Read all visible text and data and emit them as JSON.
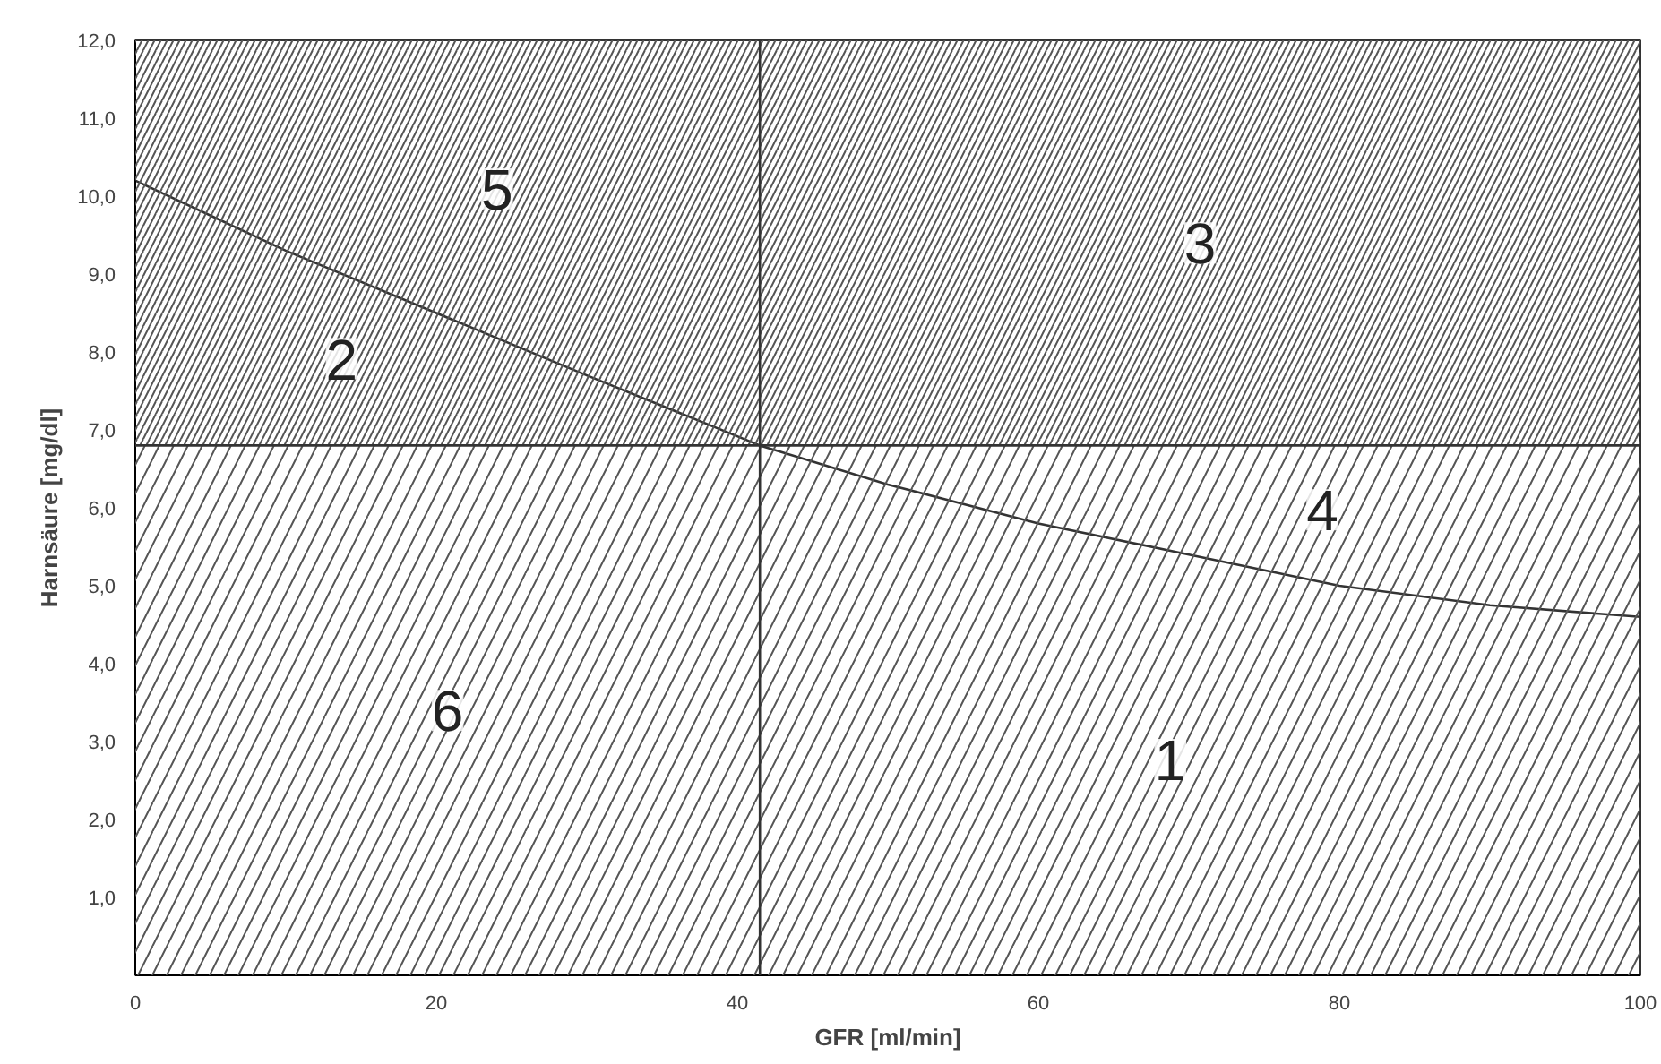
{
  "chart_data": {
    "type": "line",
    "xlabel": "GFR [ml/min]",
    "ylabel": "Harnsäure [mg/dl]",
    "xlim": [
      0,
      100
    ],
    "ylim": [
      0,
      12
    ],
    "xticks": [
      0,
      20,
      40,
      60,
      80,
      100
    ],
    "yticks": [
      {
        "value": 1,
        "label": "1,0"
      },
      {
        "value": 2,
        "label": "2,0"
      },
      {
        "value": 3,
        "label": "3,0"
      },
      {
        "value": 4,
        "label": "4,0"
      },
      {
        "value": 5,
        "label": "5,0"
      },
      {
        "value": 6,
        "label": "6,0"
      },
      {
        "value": 7,
        "label": "7,0"
      },
      {
        "value": 8,
        "label": "8,0"
      },
      {
        "value": 9,
        "label": "9,0"
      },
      {
        "value": 10,
        "label": "10,0"
      },
      {
        "value": 11,
        "label": "11,0"
      },
      {
        "value": 12,
        "label": "12,0"
      }
    ],
    "series": [
      {
        "color": "#333333",
        "x": [
          0,
          10,
          20,
          30,
          41.5,
          50,
          60,
          70,
          80,
          90,
          100
        ],
        "values": [
          10.2,
          9.3,
          8.5,
          7.7,
          6.8,
          6.3,
          5.8,
          5.4,
          5.0,
          4.75,
          4.6
        ]
      }
    ],
    "bands": [
      {
        "axis": "y",
        "from": 6.8,
        "to": 12,
        "color": "#555555"
      },
      {
        "axis": "y",
        "from": 0,
        "to": 6.8,
        "color": "#555555"
      }
    ],
    "ref_lines": [
      {
        "axis": "x",
        "value": 41.5,
        "color": "#333333"
      },
      {
        "axis": "y",
        "value": 6.8,
        "color": "#333333"
      }
    ],
    "annotations": [
      "5",
      "2",
      "3",
      "4",
      "1",
      "6"
    ],
    "grid": false
  }
}
